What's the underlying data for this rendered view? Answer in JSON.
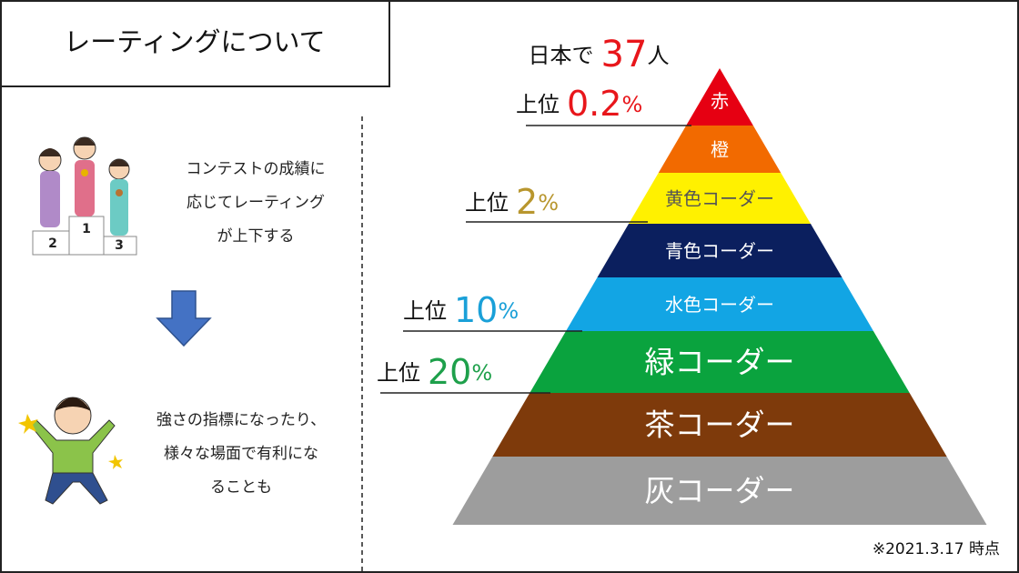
{
  "header": {
    "title": "レーティングについて"
  },
  "left": {
    "first_text": [
      "コンテストの成績に",
      "応じてレーティング",
      "が上下する"
    ],
    "second_text": [
      "強さの指標になったり、",
      "様々な場面で有利にな",
      "ることも"
    ]
  },
  "pyramid": {
    "tiers": [
      {
        "label": "赤",
        "color": "#e60012"
      },
      {
        "label": "橙",
        "color": "#f26a00"
      },
      {
        "label": "黄色コーダー",
        "color": "#fff100"
      },
      {
        "label": "青色コーダー",
        "color": "#0b1f5e"
      },
      {
        "label": "水色コーダー",
        "color": "#12a5e4"
      },
      {
        "label": "緑コーダー",
        "color": "#0aa33e"
      },
      {
        "label": "茶コーダー",
        "color": "#7e3a0b"
      },
      {
        "label": "灰コーダー",
        "color": "#9d9d9d"
      }
    ],
    "count": {
      "prefix": "日本で",
      "value": 37,
      "unit": "人"
    },
    "ranks": [
      {
        "prefix": "上位",
        "value": 0.2,
        "unit": "%"
      },
      {
        "prefix": "上位",
        "value": 2,
        "unit": "%"
      },
      {
        "prefix": "上位",
        "value": 10,
        "unit": "%"
      },
      {
        "prefix": "上位",
        "value": 20,
        "unit": "%"
      }
    ]
  },
  "footnote": "※2021.3.17 時点"
}
